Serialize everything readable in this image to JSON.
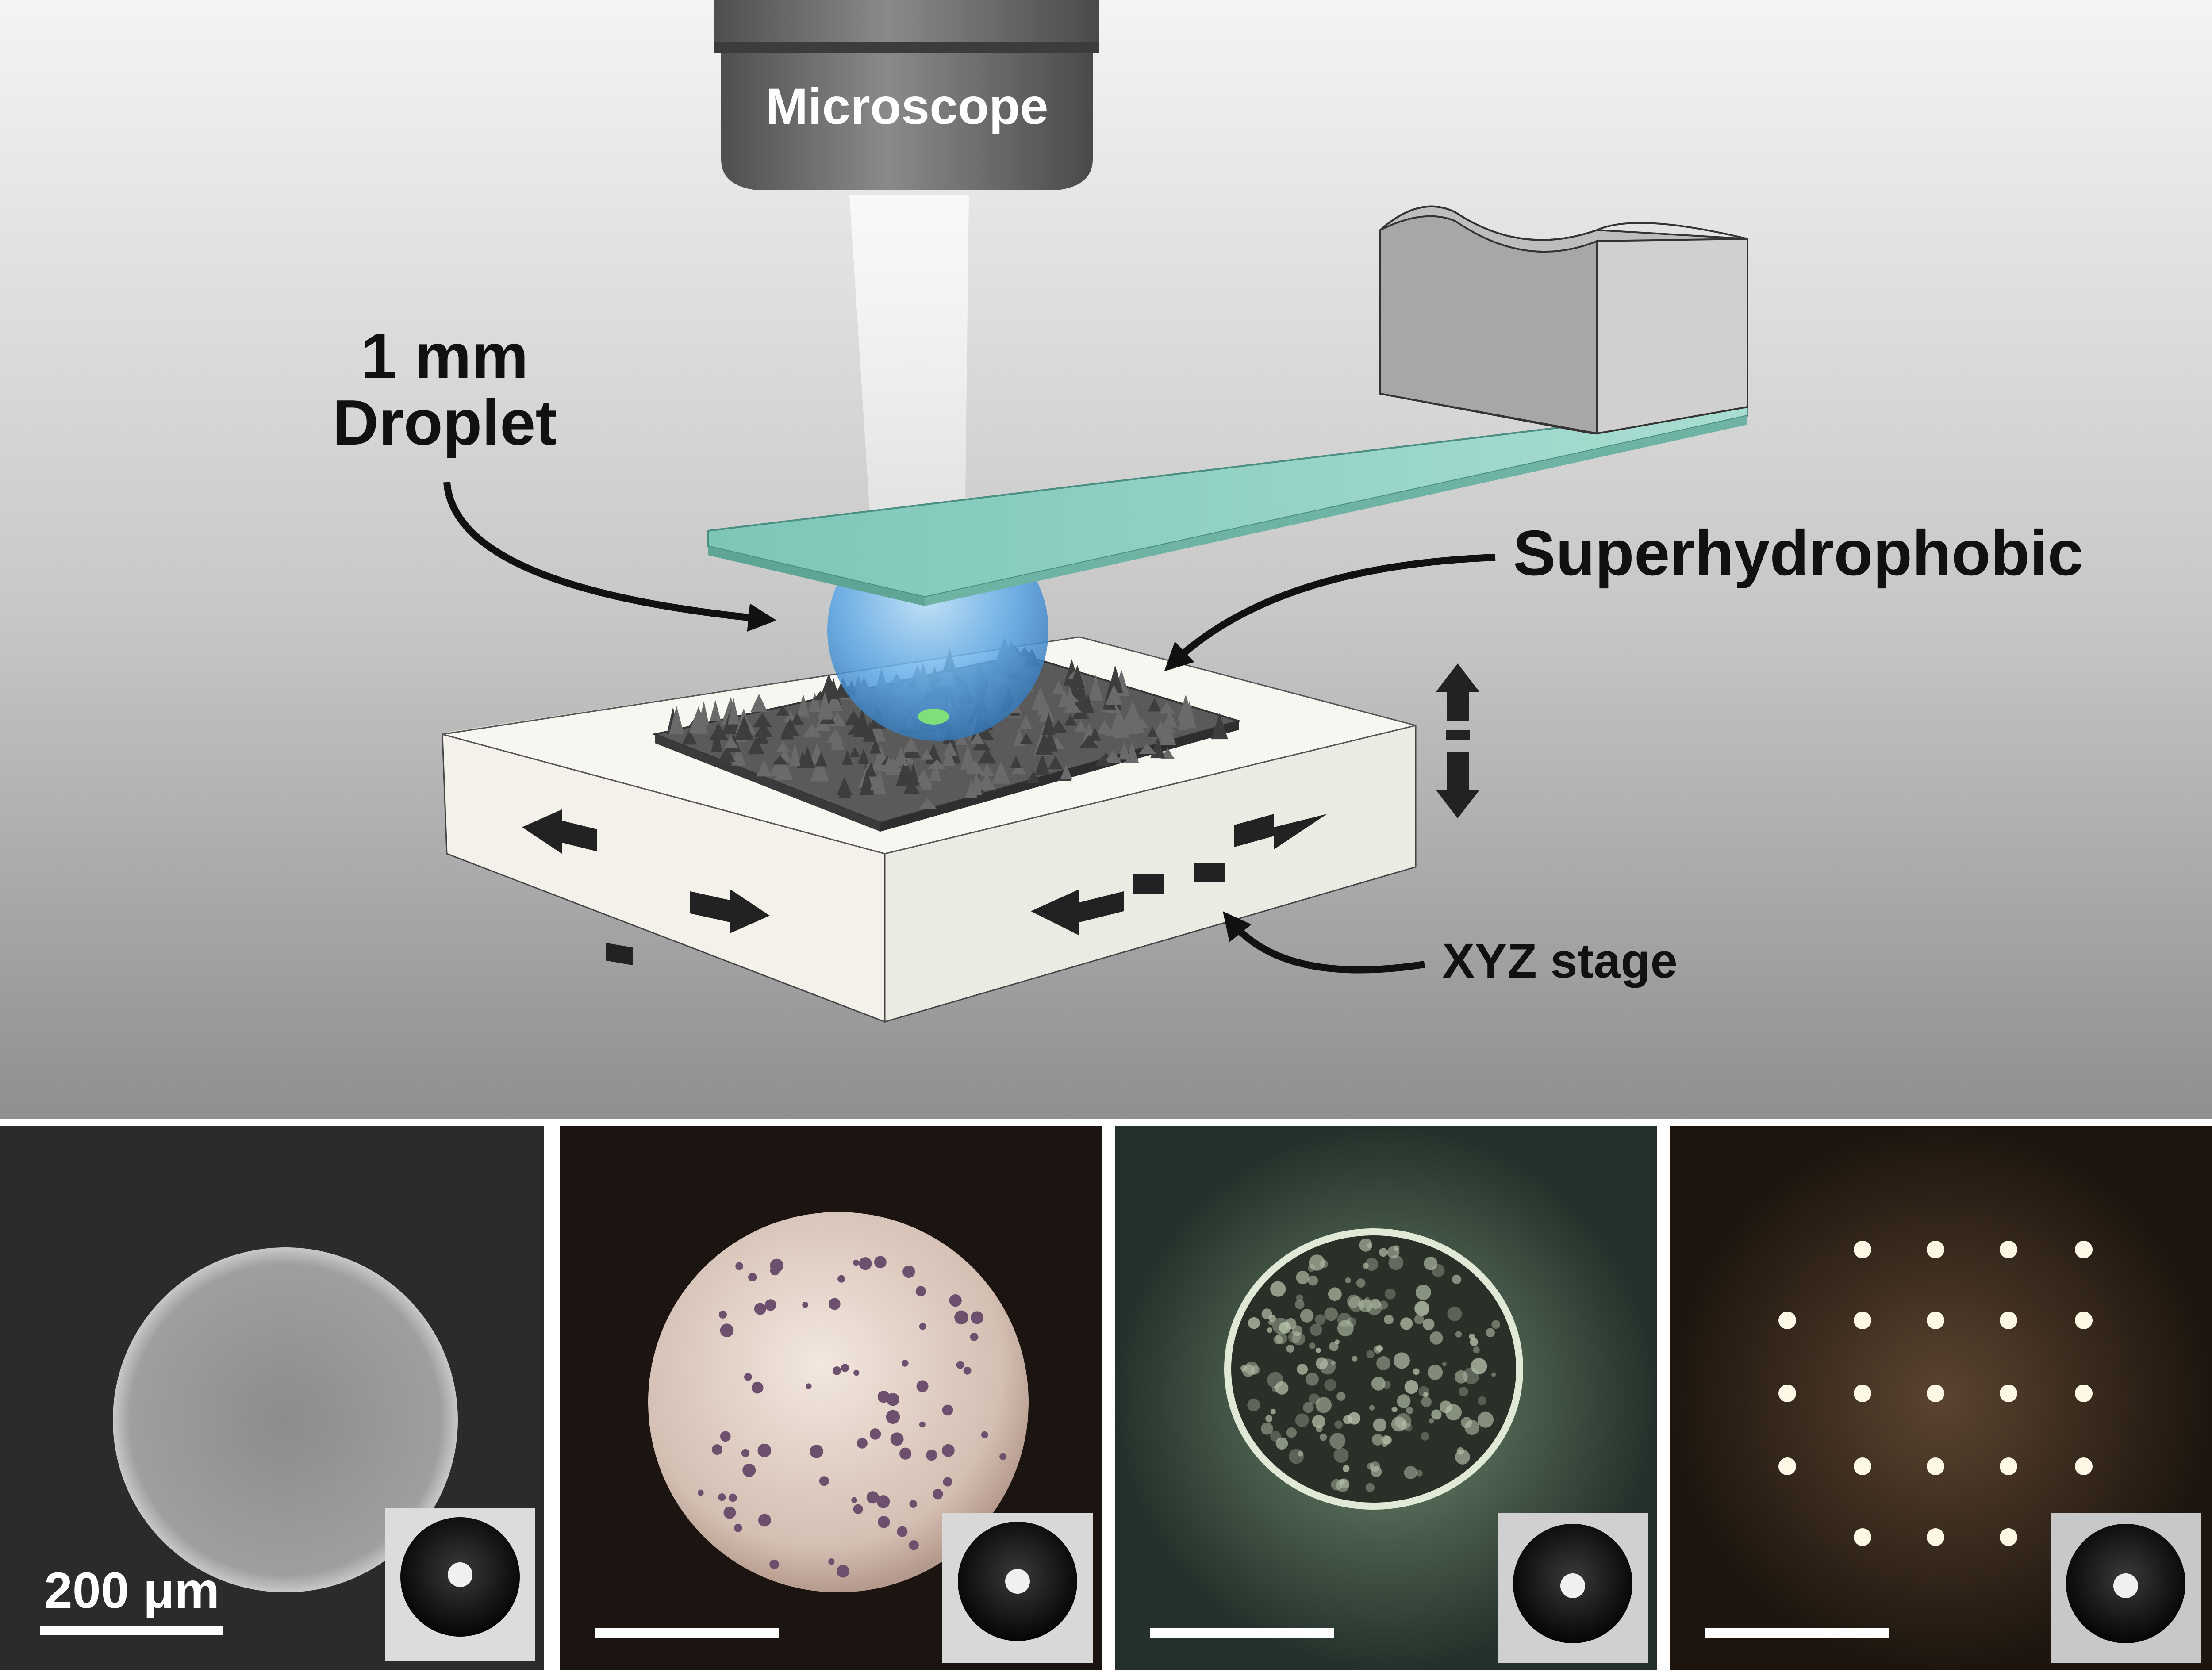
{
  "labels": {
    "microscope": "Microscope",
    "droplet_line1": "1 mm",
    "droplet_line2": "Droplet",
    "surface": "Superhydrophobic",
    "stage": "XYZ stage"
  },
  "scale_bar": {
    "label": "200 μm"
  },
  "panels": [
    {
      "name": "grayscale-droplet",
      "background": "#2a2a2a",
      "disc": "#9a9a9a"
    },
    {
      "name": "color-droplet",
      "background": "#1c1410",
      "disc": "#d8c7bd"
    },
    {
      "name": "rough-droplet",
      "background": "#2b3a2e",
      "disc": "#7b8a76"
    },
    {
      "name": "pillar-array",
      "background": "#2a2016",
      "disc": "#6a5236"
    }
  ],
  "colors": {
    "background_top": "#f3f3f3",
    "background_bottom": "#8e8e8e",
    "glass": "#8fd1c4",
    "droplet": "#5aa6e6",
    "stage": "#f2f0e8",
    "arrow": "#111111"
  }
}
